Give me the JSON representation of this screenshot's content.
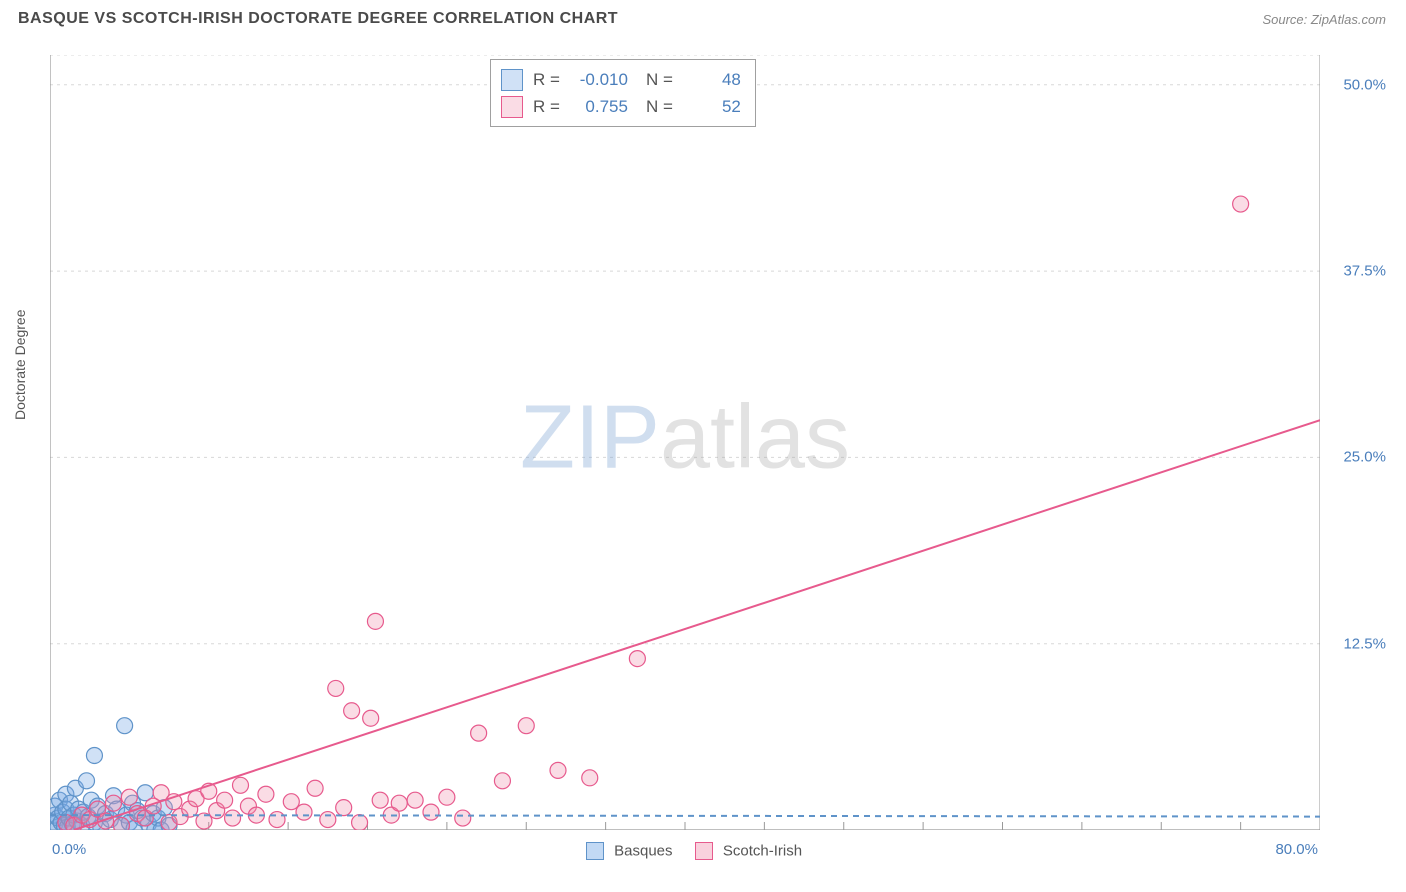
{
  "header": {
    "title": "BASQUE VS SCOTCH-IRISH DOCTORATE DEGREE CORRELATION CHART",
    "source_label": "Source: ZipAtlas.com"
  },
  "watermark": {
    "part1": "ZIP",
    "part2": "atlas"
  },
  "chart": {
    "type": "scatter",
    "ylabel": "Doctorate Degree",
    "xlim": [
      0,
      80
    ],
    "ylim": [
      0,
      52
    ],
    "x_tick_step": 5,
    "y_tick_values": [
      12.5,
      25.0,
      37.5,
      50.0
    ],
    "y_tick_labels": [
      "12.5%",
      "25.0%",
      "37.5%",
      "50.0%"
    ],
    "x_min_label": "0.0%",
    "x_max_label": "80.0%",
    "background_color": "#ffffff",
    "grid_color": "#d8d8d8",
    "axis_color": "#999999",
    "label_color": "#4a7ebb",
    "marker_radius": 8,
    "marker_stroke_width": 1.2,
    "trend_line_width": 2,
    "series": [
      {
        "name": "Basques",
        "fill": "rgba(120,170,230,0.35)",
        "stroke": "#5f93c9",
        "line_color": "#5f93c9",
        "line_dash": "6,5",
        "R": "-0.010",
        "N": "48",
        "trend": {
          "x1": 0,
          "y1": 1.0,
          "x2": 80,
          "y2": 0.9
        },
        "points": [
          [
            0.3,
            0.4
          ],
          [
            0.3,
            1.0
          ],
          [
            0.3,
            1.6
          ],
          [
            0.5,
            0.2
          ],
          [
            0.5,
            0.8
          ],
          [
            0.6,
            2.0
          ],
          [
            0.7,
            0.5
          ],
          [
            0.8,
            1.2
          ],
          [
            0.9,
            0.3
          ],
          [
            1.0,
            2.4
          ],
          [
            1.0,
            1.4
          ],
          [
            1.1,
            0.2
          ],
          [
            1.2,
            0.8
          ],
          [
            1.3,
            1.8
          ],
          [
            1.4,
            0.4
          ],
          [
            1.5,
            1.0
          ],
          [
            1.6,
            2.8
          ],
          [
            1.7,
            0.6
          ],
          [
            1.8,
            1.4
          ],
          [
            2.0,
            0.3
          ],
          [
            2.1,
            1.2
          ],
          [
            2.3,
            3.3
          ],
          [
            2.4,
            0.9
          ],
          [
            2.6,
            2.0
          ],
          [
            2.8,
            5.0
          ],
          [
            2.8,
            0.5
          ],
          [
            3.0,
            1.6
          ],
          [
            3.2,
            0.2
          ],
          [
            3.5,
            1.1
          ],
          [
            3.8,
            0.7
          ],
          [
            4.0,
            2.3
          ],
          [
            4.2,
            1.4
          ],
          [
            4.5,
            0.3
          ],
          [
            4.7,
            7.0
          ],
          [
            4.8,
            1.0
          ],
          [
            5.0,
            0.5
          ],
          [
            5.2,
            1.8
          ],
          [
            5.3,
            0.1
          ],
          [
            5.5,
            1.3
          ],
          [
            5.8,
            0.8
          ],
          [
            6.0,
            2.5
          ],
          [
            6.2,
            0.4
          ],
          [
            6.5,
            1.1
          ],
          [
            6.6,
            0.0
          ],
          [
            6.8,
            0.8
          ],
          [
            7.0,
            0.0
          ],
          [
            7.2,
            1.5
          ],
          [
            7.5,
            0.3
          ]
        ]
      },
      {
        "name": "Scotch-Irish",
        "fill": "rgba(240,140,170,0.30)",
        "stroke": "#e75a8d",
        "line_color": "#e75a8d",
        "line_dash": "",
        "R": "0.755",
        "N": "52",
        "trend": {
          "x1": 1.5,
          "y1": 0.0,
          "x2": 80,
          "y2": 27.5
        },
        "points": [
          [
            1.0,
            0.5
          ],
          [
            1.5,
            0.3
          ],
          [
            2.0,
            1.0
          ],
          [
            2.5,
            0.7
          ],
          [
            3.0,
            1.4
          ],
          [
            3.5,
            0.6
          ],
          [
            4.0,
            1.8
          ],
          [
            4.5,
            0.3
          ],
          [
            5.0,
            2.2
          ],
          [
            5.5,
            1.1
          ],
          [
            6.0,
            0.8
          ],
          [
            6.5,
            1.6
          ],
          [
            7.0,
            2.5
          ],
          [
            7.5,
            0.5
          ],
          [
            7.8,
            1.9
          ],
          [
            8.2,
            0.9
          ],
          [
            8.8,
            1.4
          ],
          [
            9.2,
            2.1
          ],
          [
            9.7,
            0.6
          ],
          [
            10.0,
            2.6
          ],
          [
            10.5,
            1.3
          ],
          [
            11.0,
            2.0
          ],
          [
            11.5,
            0.8
          ],
          [
            12.0,
            3.0
          ],
          [
            12.5,
            1.6
          ],
          [
            13.0,
            1.0
          ],
          [
            13.6,
            2.4
          ],
          [
            14.3,
            0.7
          ],
          [
            15.2,
            1.9
          ],
          [
            16.0,
            1.2
          ],
          [
            16.7,
            2.8
          ],
          [
            17.5,
            0.7
          ],
          [
            18.0,
            9.5
          ],
          [
            18.5,
            1.5
          ],
          [
            19.0,
            8.0
          ],
          [
            19.5,
            0.5
          ],
          [
            20.2,
            7.5
          ],
          [
            20.5,
            14.0
          ],
          [
            20.8,
            2.0
          ],
          [
            21.5,
            1.0
          ],
          [
            22.0,
            1.8
          ],
          [
            23.0,
            2.0
          ],
          [
            24.0,
            1.2
          ],
          [
            25.0,
            2.2
          ],
          [
            26.0,
            0.8
          ],
          [
            27.0,
            6.5
          ],
          [
            28.5,
            3.3
          ],
          [
            30.0,
            7.0
          ],
          [
            32.0,
            4.0
          ],
          [
            34.0,
            3.5
          ],
          [
            37.0,
            11.5
          ],
          [
            75.0,
            42.0
          ]
        ]
      }
    ]
  },
  "legend_bottom": {
    "items": [
      {
        "label": "Basques",
        "fill": "rgba(120,170,230,0.45)",
        "stroke": "#5f93c9"
      },
      {
        "label": "Scotch-Irish",
        "fill": "rgba(240,140,170,0.40)",
        "stroke": "#e75a8d"
      }
    ]
  }
}
